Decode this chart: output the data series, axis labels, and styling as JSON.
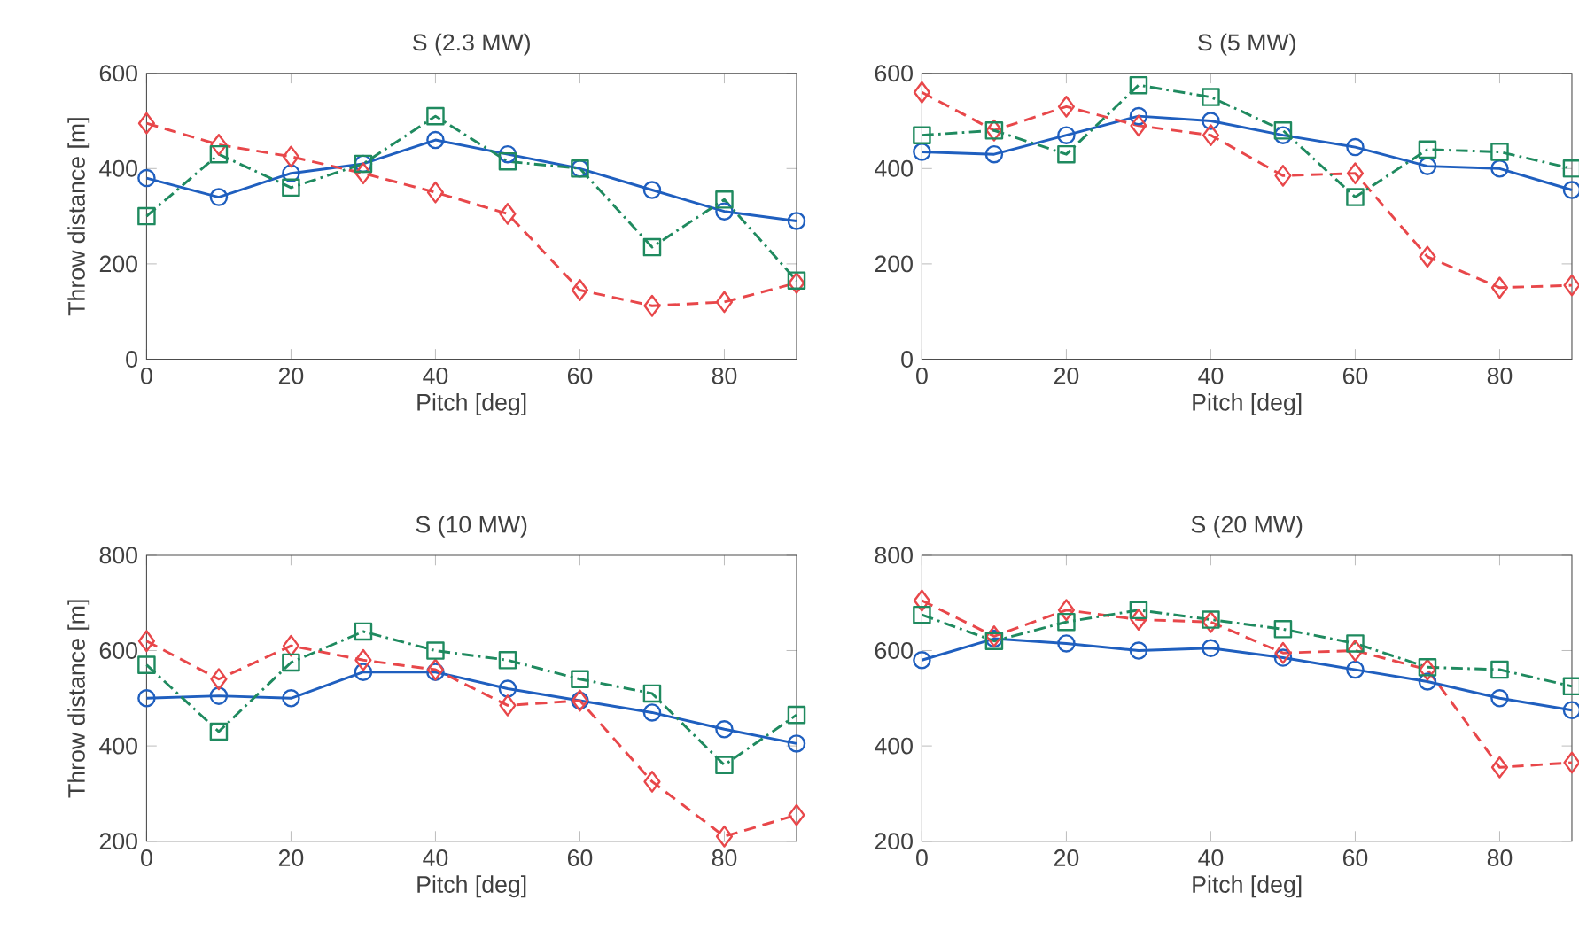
{
  "chart_data": [
    {
      "type": "line",
      "title": "S (2.3 MW)",
      "xlabel": "Pitch [deg]",
      "ylabel": "Throw distance [m]",
      "x": [
        0,
        10,
        20,
        30,
        40,
        50,
        60,
        70,
        80,
        90
      ],
      "xlim": [
        0,
        90
      ],
      "xticks": [
        0,
        20,
        40,
        60,
        80
      ],
      "ylim": [
        0,
        600
      ],
      "yticks": [
        0,
        200,
        400,
        600
      ],
      "grid": false,
      "series": [
        {
          "color": "#1f5fbf",
          "marker": "circle",
          "line_style": "solid",
          "values": [
            380,
            340,
            390,
            410,
            460,
            430,
            400,
            355,
            310,
            290
          ]
        },
        {
          "color": "#e8474a",
          "marker": "diamond",
          "line_style": "dashed",
          "values": [
            495,
            450,
            425,
            390,
            350,
            305,
            145,
            112,
            120,
            160
          ]
        },
        {
          "color": "#1f8a5f",
          "marker": "square",
          "line_style": "dashdot",
          "values": [
            300,
            430,
            360,
            410,
            510,
            415,
            400,
            235,
            335,
            165
          ]
        }
      ]
    },
    {
      "type": "line",
      "title": "S (5 MW)",
      "xlabel": "Pitch [deg]",
      "x": [
        0,
        10,
        20,
        30,
        40,
        50,
        60,
        70,
        80,
        90
      ],
      "xlim": [
        0,
        90
      ],
      "xticks": [
        0,
        20,
        40,
        60,
        80
      ],
      "ylim": [
        0,
        600
      ],
      "yticks": [
        0,
        200,
        400,
        600
      ],
      "grid": false,
      "series": [
        {
          "color": "#1f5fbf",
          "marker": "circle",
          "line_style": "solid",
          "values": [
            435,
            430,
            470,
            510,
            500,
            470,
            445,
            405,
            400,
            355
          ]
        },
        {
          "color": "#e8474a",
          "marker": "diamond",
          "line_style": "dashed",
          "values": [
            560,
            480,
            530,
            490,
            470,
            385,
            390,
            215,
            150,
            155
          ]
        },
        {
          "color": "#1f8a5f",
          "marker": "square",
          "line_style": "dashdot",
          "values": [
            470,
            480,
            430,
            575,
            550,
            480,
            340,
            440,
            435,
            400
          ]
        }
      ]
    },
    {
      "type": "line",
      "title": "S (10 MW)",
      "xlabel": "Pitch [deg]",
      "ylabel": "Throw distance [m]",
      "x": [
        0,
        10,
        20,
        30,
        40,
        50,
        60,
        70,
        80,
        90
      ],
      "xlim": [
        0,
        90
      ],
      "xticks": [
        0,
        20,
        40,
        60,
        80
      ],
      "ylim": [
        200,
        800
      ],
      "yticks": [
        200,
        400,
        600,
        800
      ],
      "grid": false,
      "series": [
        {
          "color": "#1f5fbf",
          "marker": "circle",
          "line_style": "solid",
          "values": [
            500,
            505,
            500,
            555,
            555,
            520,
            495,
            470,
            435,
            405
          ]
        },
        {
          "color": "#e8474a",
          "marker": "diamond",
          "line_style": "dashed",
          "values": [
            620,
            540,
            610,
            580,
            560,
            485,
            495,
            325,
            210,
            255
          ]
        },
        {
          "color": "#1f8a5f",
          "marker": "square",
          "line_style": "dashdot",
          "values": [
            570,
            430,
            575,
            640,
            600,
            580,
            540,
            510,
            360,
            465
          ]
        }
      ]
    },
    {
      "type": "line",
      "title": "S (20 MW)",
      "xlabel": "Pitch [deg]",
      "x": [
        0,
        10,
        20,
        30,
        40,
        50,
        60,
        70,
        80,
        90
      ],
      "xlim": [
        0,
        90
      ],
      "xticks": [
        0,
        20,
        40,
        60,
        80
      ],
      "ylim": [
        200,
        800
      ],
      "yticks": [
        200,
        400,
        600,
        800
      ],
      "grid": false,
      "series": [
        {
          "color": "#1f5fbf",
          "marker": "circle",
          "line_style": "solid",
          "values": [
            580,
            625,
            615,
            600,
            605,
            585,
            560,
            535,
            500,
            475
          ]
        },
        {
          "color": "#e8474a",
          "marker": "diamond",
          "line_style": "dashed",
          "values": [
            705,
            630,
            685,
            665,
            660,
            595,
            600,
            560,
            355,
            365
          ]
        },
        {
          "color": "#1f8a5f",
          "marker": "square",
          "line_style": "dashdot",
          "values": [
            675,
            620,
            660,
            685,
            665,
            645,
            615,
            565,
            560,
            525
          ]
        }
      ]
    }
  ]
}
